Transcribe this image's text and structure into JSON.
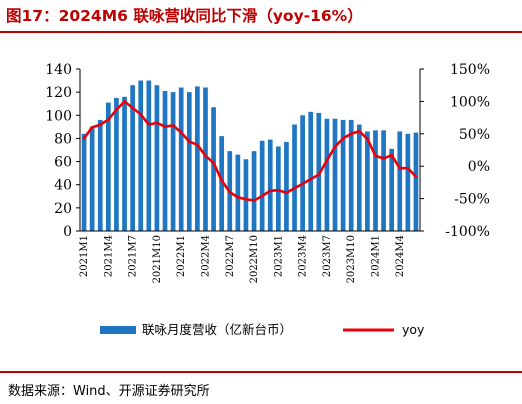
{
  "title": "图17：2024M6 联咏营收同比下滑（yoy-16%）",
  "source": "数据来源：Wind、开源证券研究所",
  "chart_data": {
    "type": "bar+line",
    "title": "图17：2024M6 联咏营收同比下滑（yoy-16%）",
    "categories": [
      "2021M1",
      "2021M2",
      "2021M3",
      "2021M4",
      "2021M5",
      "2021M6",
      "2021M7",
      "2021M8",
      "2021M9",
      "2021M10",
      "2021M11",
      "2021M12",
      "2022M1",
      "2022M2",
      "2022M3",
      "2022M4",
      "2022M5",
      "2022M6",
      "2022M7",
      "2022M8",
      "2022M9",
      "2022M10",
      "2022M11",
      "2022M12",
      "2023M1",
      "2023M2",
      "2023M3",
      "2023M4",
      "2023M5",
      "2023M6",
      "2023M7",
      "2023M8",
      "2023M9",
      "2023M10",
      "2023M11",
      "2023M12",
      "2024M1",
      "2024M2",
      "2024M3",
      "2024M4",
      "2024M5",
      "2024M6"
    ],
    "x_tick_labels": [
      "2021M1",
      "2021M4",
      "2021M7",
      "2021M10",
      "2022M1",
      "2022M4",
      "2022M7",
      "2022M10",
      "2023M1",
      "2023M4",
      "2023M7",
      "2023M10",
      "2024M1",
      "2024M4"
    ],
    "series": [
      {
        "name": "联咏月度营收（亿新台币）",
        "type": "bar",
        "axis": "left",
        "color": "#1f77c4",
        "values": [
          84,
          90,
          96,
          111,
          115,
          116,
          126,
          130,
          130,
          126,
          121,
          120,
          124,
          120,
          125,
          124,
          107,
          82,
          69,
          66,
          62,
          69,
          78,
          79,
          73,
          77,
          92,
          100,
          103,
          102,
          97,
          97,
          96,
          96,
          92,
          86,
          87,
          87,
          71,
          86,
          84,
          85
        ]
      },
      {
        "name": "yoy",
        "type": "line",
        "axis": "right",
        "color": "#e8000b",
        "values": [
          43,
          60,
          64,
          72,
          87,
          100,
          90,
          80,
          64,
          67,
          61,
          63,
          52,
          38,
          33,
          16,
          5,
          -22,
          -40,
          -48,
          -51,
          -53,
          -46,
          -38,
          -37,
          -41,
          -34,
          -27,
          -20,
          -13,
          9,
          30,
          43,
          50,
          54,
          42,
          16,
          12,
          17,
          -3,
          -3,
          -16
        ]
      }
    ],
    "ylim_left": [
      0,
      140
    ],
    "yticks_left": [
      "0",
      "20",
      "40",
      "60",
      "80",
      "100",
      "120",
      "140"
    ],
    "ylim_right": [
      -100,
      150
    ],
    "yticks_right": [
      "-100%",
      "-50%",
      "0%",
      "50%",
      "100%",
      "150%"
    ],
    "grid": false,
    "legend": {
      "placement": "bottom",
      "bar_label": "联咏月度营收（亿新台币）",
      "line_label": "yoy"
    }
  }
}
